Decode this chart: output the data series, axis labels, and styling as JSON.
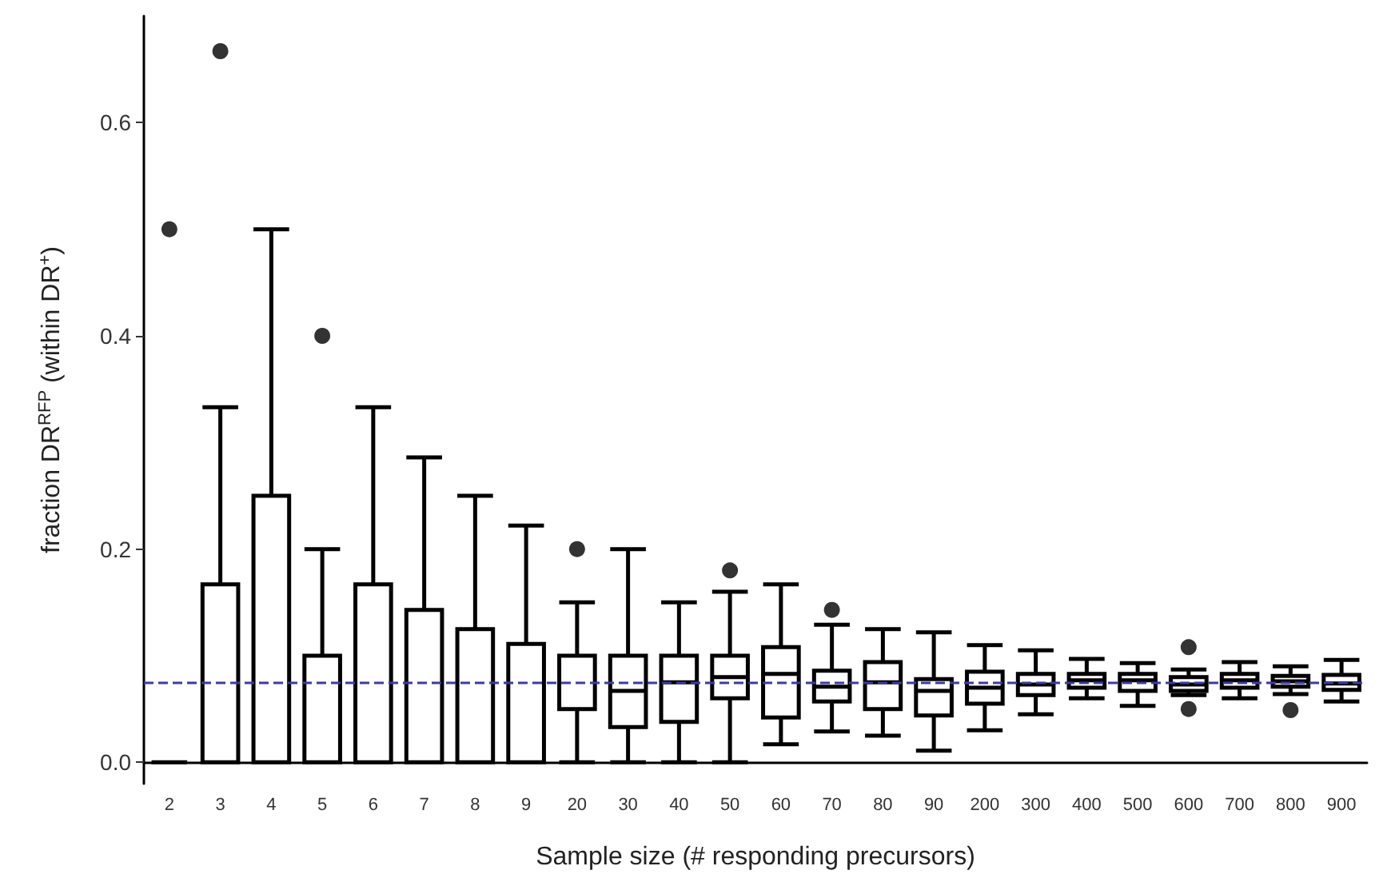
{
  "chart_data": {
    "type": "box",
    "xlabel": "Sample size (# responding precursors)",
    "ylabel": "fraction DR$^{RFP}$ (within DR$^{+}$)",
    "categories": [
      "2",
      "3",
      "4",
      "5",
      "6",
      "7",
      "8",
      "9",
      "20",
      "30",
      "40",
      "50",
      "60",
      "70",
      "80",
      "90",
      "200",
      "300",
      "400",
      "500",
      "600",
      "700",
      "800",
      "900"
    ],
    "boxes": [
      {
        "low": 0,
        "q1": 0,
        "median": 0,
        "q3": 0,
        "high": 0,
        "outliers": [
          0.5
        ]
      },
      {
        "low": 0,
        "q1": 0,
        "median": 0,
        "q3": 0.167,
        "high": 0.333,
        "outliers": [
          0.667
        ]
      },
      {
        "low": 0,
        "q1": 0,
        "median": 0,
        "q3": 0.25,
        "high": 0.5
      },
      {
        "low": 0,
        "q1": 0,
        "median": 0,
        "q3": 0.1,
        "high": 0.2,
        "outliers": [
          0.4
        ]
      },
      {
        "low": 0,
        "q1": 0,
        "median": 0,
        "q3": 0.167,
        "high": 0.333
      },
      {
        "low": 0,
        "q1": 0,
        "median": 0,
        "q3": 0.143,
        "high": 0.286
      },
      {
        "low": 0,
        "q1": 0,
        "median": 0.125,
        "q3": 0.125,
        "high": 0.25
      },
      {
        "low": 0,
        "q1": 0,
        "median": 0,
        "q3": 0.111,
        "high": 0.222
      },
      {
        "low": 0,
        "q1": 0.05,
        "median": 0.1,
        "q3": 0.1,
        "high": 0.15,
        "outliers": [
          0.2
        ]
      },
      {
        "low": 0,
        "q1": 0.033,
        "median": 0.067,
        "q3": 0.1,
        "high": 0.2
      },
      {
        "low": 0,
        "q1": 0.038,
        "median": 0.075,
        "q3": 0.1,
        "high": 0.15
      },
      {
        "low": 0,
        "q1": 0.06,
        "median": 0.08,
        "q3": 0.1,
        "high": 0.16,
        "outliers": [
          0.18
        ]
      },
      {
        "low": 0.017,
        "q1": 0.042,
        "median": 0.083,
        "q3": 0.108,
        "high": 0.167
      },
      {
        "low": 0.029,
        "q1": 0.057,
        "median": 0.071,
        "q3": 0.086,
        "high": 0.129,
        "outliers": [
          0.143
        ]
      },
      {
        "low": 0.025,
        "q1": 0.05,
        "median": 0.075,
        "q3": 0.094,
        "high": 0.125
      },
      {
        "low": 0.011,
        "q1": 0.044,
        "median": 0.067,
        "q3": 0.078,
        "high": 0.122
      },
      {
        "low": 0.03,
        "q1": 0.055,
        "median": 0.07,
        "q3": 0.085,
        "high": 0.11
      },
      {
        "low": 0.045,
        "q1": 0.063,
        "median": 0.073,
        "q3": 0.083,
        "high": 0.105
      },
      {
        "low": 0.06,
        "q1": 0.07,
        "median": 0.077,
        "q3": 0.083,
        "high": 0.097
      },
      {
        "low": 0.053,
        "q1": 0.067,
        "median": 0.077,
        "q3": 0.083,
        "high": 0.093
      },
      {
        "low": 0.063,
        "q1": 0.067,
        "median": 0.073,
        "q3": 0.08,
        "high": 0.087,
        "outliers": [
          0.108,
          0.05
        ]
      },
      {
        "low": 0.06,
        "q1": 0.07,
        "median": 0.077,
        "q3": 0.083,
        "high": 0.094
      },
      {
        "low": 0.064,
        "q1": 0.071,
        "median": 0.076,
        "q3": 0.081,
        "high": 0.09,
        "outliers": [
          0.049
        ]
      },
      {
        "low": 0.057,
        "q1": 0.068,
        "median": 0.074,
        "q3": 0.082,
        "high": 0.096
      }
    ],
    "color": "#000000",
    "ylim": [
      -0.02,
      0.7
    ],
    "yticks": [
      {
        "value": 0,
        "label": "0.0"
      },
      {
        "value": 0.2,
        "label": "0.2"
      },
      {
        "value": 0.4,
        "label": "0.4"
      },
      {
        "value": 0.6,
        "label": "0.6"
      }
    ],
    "ref_lines": [
      {
        "axis": "y",
        "value": 0.075,
        "label": null,
        "color": "#3b3ba8",
        "line_style": "dashed"
      }
    ],
    "grid": false,
    "marker": "circle"
  }
}
